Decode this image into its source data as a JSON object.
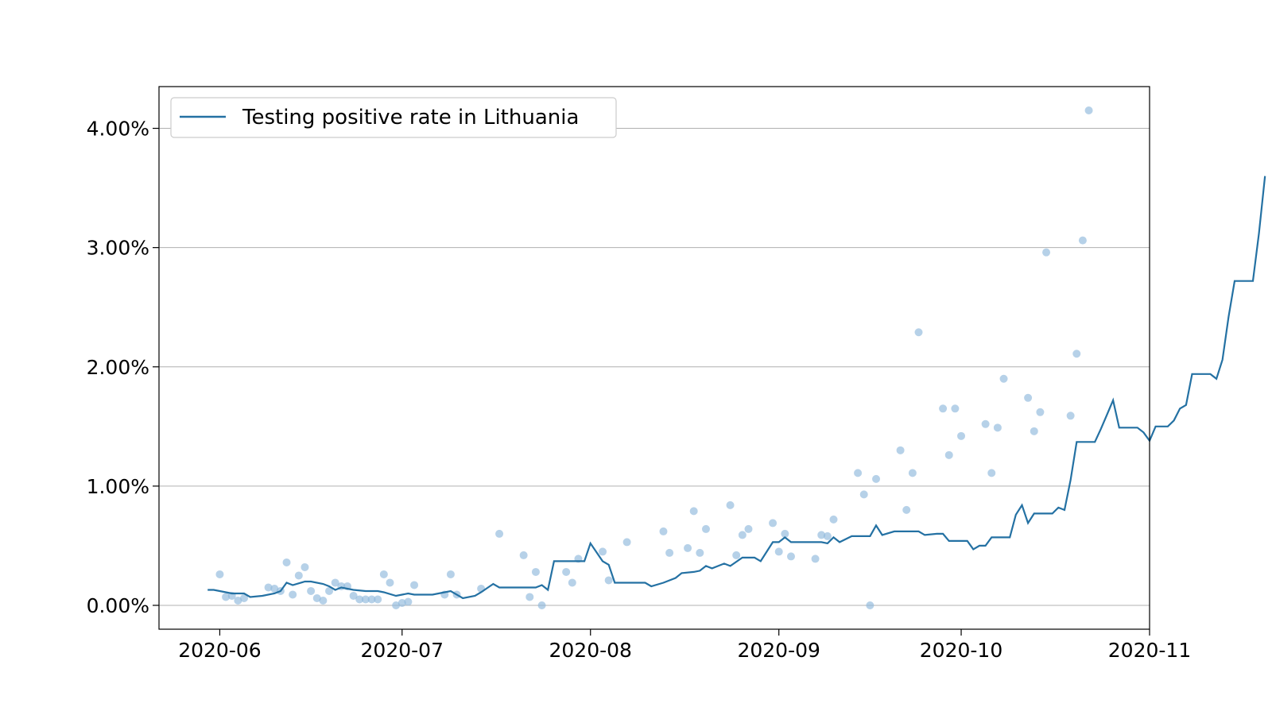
{
  "chart_data": {
    "type": "line",
    "title": "",
    "xlabel": "",
    "ylabel": "",
    "xlim": [
      "2020-05-22",
      "2020-11-01"
    ],
    "ylim": [
      -0.2,
      4.35
    ],
    "x_ticks": [
      "2020-06-01",
      "2020-07-01",
      "2020-08-01",
      "2020-09-01",
      "2020-10-01",
      "2020-11-01"
    ],
    "x_tick_labels": [
      "2020-06",
      "2020-07",
      "2020-08",
      "2020-09",
      "2020-10",
      "2020-11"
    ],
    "y_ticks": [
      0,
      1,
      2,
      3,
      4
    ],
    "y_tick_labels": [
      "0.00%",
      "1.00%",
      "2.00%",
      "3.00%",
      "4.00%"
    ],
    "grid": "horizontal",
    "legend": {
      "position": "top-left",
      "entries": [
        "Testing positive rate in Lithuania"
      ]
    },
    "colors": {
      "line": "#2471a3",
      "points": "#8fb9dc"
    },
    "series": [
      {
        "name": "Testing positive rate in Lithuania",
        "kind": "line",
        "points": [
          [
            "2020-05-30",
            0.13
          ],
          [
            "2020-05-31",
            0.13
          ],
          [
            "2020-06-02",
            0.11
          ],
          [
            "2020-06-03",
            0.1
          ],
          [
            "2020-06-05",
            0.1
          ],
          [
            "2020-06-06",
            0.07
          ],
          [
            "2020-06-08",
            0.08
          ],
          [
            "2020-06-10",
            0.1
          ],
          [
            "2020-06-11",
            0.12
          ],
          [
            "2020-06-12",
            0.19
          ],
          [
            "2020-06-13",
            0.17
          ],
          [
            "2020-06-15",
            0.2
          ],
          [
            "2020-06-16",
            0.2
          ],
          [
            "2020-06-18",
            0.18
          ],
          [
            "2020-06-19",
            0.16
          ],
          [
            "2020-06-20",
            0.13
          ],
          [
            "2020-06-21",
            0.15
          ],
          [
            "2020-06-23",
            0.13
          ],
          [
            "2020-06-25",
            0.12
          ],
          [
            "2020-06-27",
            0.12
          ],
          [
            "2020-06-28",
            0.11
          ],
          [
            "2020-06-30",
            0.08
          ],
          [
            "2020-07-01",
            0.09
          ],
          [
            "2020-07-02",
            0.1
          ],
          [
            "2020-07-03",
            0.09
          ],
          [
            "2020-07-05",
            0.09
          ],
          [
            "2020-07-06",
            0.09
          ],
          [
            "2020-07-08",
            0.11
          ],
          [
            "2020-07-09",
            0.12
          ],
          [
            "2020-07-11",
            0.06
          ],
          [
            "2020-07-13",
            0.08
          ],
          [
            "2020-07-14",
            0.11
          ],
          [
            "2020-07-16",
            0.18
          ],
          [
            "2020-07-17",
            0.15
          ],
          [
            "2020-07-19",
            0.15
          ],
          [
            "2020-07-21",
            0.15
          ],
          [
            "2020-07-23",
            0.15
          ],
          [
            "2020-07-24",
            0.17
          ],
          [
            "2020-07-25",
            0.13
          ],
          [
            "2020-07-26",
            0.37
          ],
          [
            "2020-07-28",
            0.37
          ],
          [
            "2020-07-29",
            0.37
          ],
          [
            "2020-07-31",
            0.37
          ],
          [
            "2020-07-32",
            0.52
          ],
          [
            "2020-08-03",
            0.37
          ],
          [
            "2020-08-04",
            0.34
          ],
          [
            "2020-08-05",
            0.19
          ],
          [
            "2020-08-07",
            0.19
          ],
          [
            "2020-08-08",
            0.19
          ],
          [
            "2020-08-10",
            0.19
          ],
          [
            "2020-08-11",
            0.16
          ],
          [
            "2020-08-13",
            0.19
          ],
          [
            "2020-08-15",
            0.23
          ],
          [
            "2020-08-16",
            0.27
          ],
          [
            "2020-08-18",
            0.28
          ],
          [
            "2020-08-19",
            0.29
          ],
          [
            "2020-08-20",
            0.33
          ],
          [
            "2020-08-21",
            0.31
          ],
          [
            "2020-08-23",
            0.35
          ],
          [
            "2020-08-24",
            0.33
          ],
          [
            "2020-08-26",
            0.4
          ],
          [
            "2020-08-28",
            0.4
          ],
          [
            "2020-08-29",
            0.37
          ],
          [
            "2020-08-31",
            0.53
          ],
          [
            "2020-09-01",
            0.53
          ],
          [
            "2020-09-02",
            0.57
          ],
          [
            "2020-09-03",
            0.53
          ],
          [
            "2020-09-05",
            0.53
          ],
          [
            "2020-09-06",
            0.53
          ],
          [
            "2020-09-08",
            0.53
          ],
          [
            "2020-09-09",
            0.52
          ],
          [
            "2020-09-10",
            0.57
          ],
          [
            "2020-09-11",
            0.53
          ],
          [
            "2020-09-13",
            0.58
          ],
          [
            "2020-09-15",
            0.58
          ],
          [
            "2020-09-16",
            0.58
          ],
          [
            "2020-09-17",
            0.67
          ],
          [
            "2020-09-18",
            0.59
          ],
          [
            "2020-09-20",
            0.62
          ],
          [
            "2020-09-21",
            0.62
          ],
          [
            "2020-09-22",
            0.62
          ],
          [
            "2020-09-23",
            0.62
          ],
          [
            "2020-09-24",
            0.62
          ],
          [
            "2020-09-25",
            0.59
          ],
          [
            "2020-09-27",
            0.6
          ],
          [
            "2020-09-28",
            0.6
          ],
          [
            "2020-09-29",
            0.54
          ],
          [
            "2020-09-31",
            0.54
          ],
          [
            "2020-10-02",
            0.54
          ],
          [
            "2020-10-03",
            0.47
          ],
          [
            "2020-10-04",
            0.5
          ],
          [
            "2020-10-05",
            0.5
          ],
          [
            "2020-10-06",
            0.57
          ],
          [
            "2020-10-08",
            0.57
          ],
          [
            "2020-10-09",
            0.57
          ],
          [
            "2020-10-10",
            0.76
          ],
          [
            "2020-10-11",
            0.84
          ],
          [
            "2020-10-12",
            0.69
          ],
          [
            "2020-10-13",
            0.77
          ],
          [
            "2020-10-15",
            0.77
          ],
          [
            "2020-10-16",
            0.77
          ],
          [
            "2020-10-17",
            0.82
          ],
          [
            "2020-10-18",
            0.8
          ],
          [
            "2020-10-19",
            1.05
          ],
          [
            "2020-10-20",
            1.37
          ],
          [
            "2020-10-21",
            1.37
          ],
          [
            "2020-10-22",
            1.37
          ],
          [
            "2020-10-23",
            1.37
          ],
          [
            "2020-10-24",
            1.48
          ],
          [
            "2020-10-25",
            1.6
          ],
          [
            "2020-10-26",
            1.72
          ],
          [
            "2020-10-27",
            1.49
          ],
          [
            "2020-10-28",
            1.49
          ],
          [
            "2020-10-29",
            1.49
          ],
          [
            "2020-10-30",
            1.49
          ],
          [
            "2020-10-31",
            1.45
          ],
          [
            "2020-10-32",
            1.38
          ],
          [
            "2020-10-33",
            1.5
          ],
          [
            "2020-10-34",
            1.5
          ],
          [
            "2020-10-35",
            1.5
          ],
          [
            "2020-10-36",
            1.55
          ],
          [
            "2020-10-37",
            1.65
          ],
          [
            "2020-10-38",
            1.68
          ],
          [
            "2020-10-39",
            1.94
          ],
          [
            "2020-10-40",
            1.94
          ],
          [
            "2020-10-41",
            1.94
          ],
          [
            "2020-10-42",
            1.94
          ],
          [
            "2020-10-43",
            1.9
          ],
          [
            "2020-10-44",
            2.06
          ],
          [
            "2020-10-45",
            2.42
          ],
          [
            "2020-10-46",
            2.72
          ],
          [
            "2020-10-47",
            2.72
          ],
          [
            "2020-10-48",
            2.72
          ],
          [
            "2020-10-49",
            2.72
          ],
          [
            "2020-10-50",
            3.12
          ],
          [
            "2020-10-51",
            3.6
          ]
        ]
      },
      {
        "kind": "scatter",
        "points": [
          [
            "2020-06-01",
            0.26
          ],
          [
            "2020-06-02",
            0.07
          ],
          [
            "2020-06-03",
            0.08
          ],
          [
            "2020-06-04",
            0.04
          ],
          [
            "2020-06-05",
            0.06
          ],
          [
            "2020-06-09",
            0.15
          ],
          [
            "2020-06-10",
            0.14
          ],
          [
            "2020-06-11",
            0.12
          ],
          [
            "2020-06-12",
            0.36
          ],
          [
            "2020-06-13",
            0.09
          ],
          [
            "2020-06-14",
            0.25
          ],
          [
            "2020-06-15",
            0.32
          ],
          [
            "2020-06-16",
            0.12
          ],
          [
            "2020-06-17",
            0.06
          ],
          [
            "2020-06-18",
            0.04
          ],
          [
            "2020-06-19",
            0.12
          ],
          [
            "2020-06-20",
            0.19
          ],
          [
            "2020-06-21",
            0.16
          ],
          [
            "2020-06-22",
            0.16
          ],
          [
            "2020-06-23",
            0.08
          ],
          [
            "2020-06-24",
            0.05
          ],
          [
            "2020-06-25",
            0.05
          ],
          [
            "2020-06-26",
            0.05
          ],
          [
            "2020-06-27",
            0.05
          ],
          [
            "2020-06-28",
            0.26
          ],
          [
            "2020-06-29",
            0.19
          ],
          [
            "2020-06-30",
            0.0
          ],
          [
            "2020-07-01",
            0.02
          ],
          [
            "2020-07-02",
            0.03
          ],
          [
            "2020-07-03",
            0.17
          ],
          [
            "2020-07-08",
            0.09
          ],
          [
            "2020-07-09",
            0.26
          ],
          [
            "2020-07-10",
            0.09
          ],
          [
            "2020-07-14",
            0.14
          ],
          [
            "2020-07-17",
            0.6
          ],
          [
            "2020-07-21",
            0.42
          ],
          [
            "2020-07-22",
            0.07
          ],
          [
            "2020-07-23",
            0.28
          ],
          [
            "2020-07-24",
            0.0
          ],
          [
            "2020-07-28",
            0.28
          ],
          [
            "2020-07-29",
            0.19
          ],
          [
            "2020-07-30",
            0.39
          ],
          [
            "2020-08-03",
            0.45
          ],
          [
            "2020-08-04",
            0.21
          ],
          [
            "2020-08-07",
            0.53
          ],
          [
            "2020-08-13",
            0.62
          ],
          [
            "2020-08-14",
            0.44
          ],
          [
            "2020-08-17",
            0.48
          ],
          [
            "2020-08-18",
            0.79
          ],
          [
            "2020-08-19",
            0.44
          ],
          [
            "2020-08-20",
            0.64
          ],
          [
            "2020-08-24",
            0.84
          ],
          [
            "2020-08-25",
            0.42
          ],
          [
            "2020-08-26",
            0.59
          ],
          [
            "2020-08-27",
            0.64
          ],
          [
            "2020-08-31",
            0.69
          ],
          [
            "2020-09-01",
            0.45
          ],
          [
            "2020-09-02",
            0.6
          ],
          [
            "2020-09-03",
            0.41
          ],
          [
            "2020-09-07",
            0.39
          ],
          [
            "2020-09-08",
            0.59
          ],
          [
            "2020-09-09",
            0.58
          ],
          [
            "2020-09-10",
            0.72
          ],
          [
            "2020-09-14",
            1.11
          ],
          [
            "2020-09-15",
            0.93
          ],
          [
            "2020-09-16",
            0.0
          ],
          [
            "2020-09-17",
            1.06
          ],
          [
            "2020-09-21",
            1.3
          ],
          [
            "2020-09-22",
            0.8
          ],
          [
            "2020-09-23",
            1.11
          ],
          [
            "2020-09-24",
            2.29
          ],
          [
            "2020-09-28",
            1.65
          ],
          [
            "2020-09-29",
            1.26
          ],
          [
            "2020-09-30",
            1.65
          ],
          [
            "2020-10-01",
            1.42
          ],
          [
            "2020-10-05",
            1.52
          ],
          [
            "2020-10-06",
            1.11
          ],
          [
            "2020-10-07",
            1.49
          ],
          [
            "2020-10-08",
            1.9
          ],
          [
            "2020-10-12",
            1.74
          ],
          [
            "2020-10-13",
            1.46
          ],
          [
            "2020-10-14",
            1.62
          ],
          [
            "2020-10-15",
            2.96
          ],
          [
            "2020-10-19",
            1.59
          ],
          [
            "2020-10-20",
            2.11
          ],
          [
            "2020-10-21",
            3.06
          ],
          [
            "2020-10-22",
            4.15
          ]
        ]
      }
    ]
  }
}
